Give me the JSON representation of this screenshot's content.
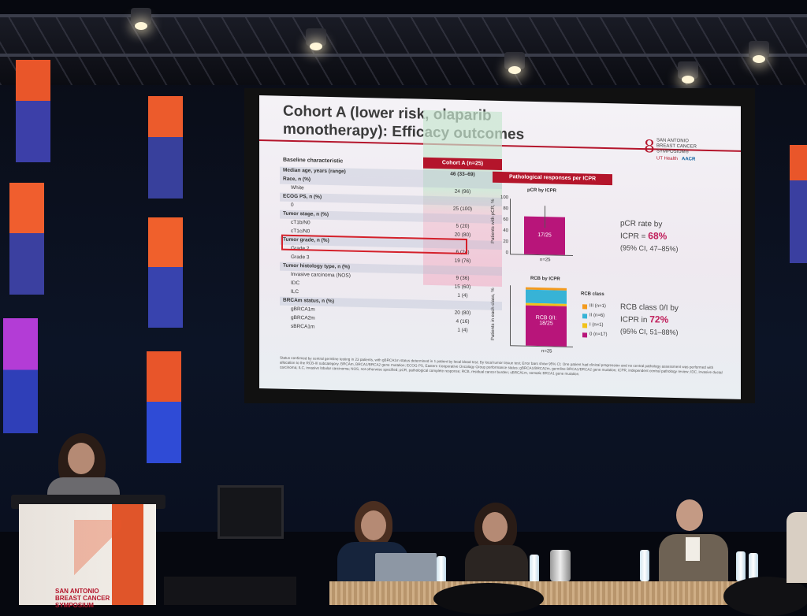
{
  "slide": {
    "title_line1": "Cohort A (lower risk, olaparib",
    "title_line2": "monotherapy): Efficacy outcomes",
    "logo_text": "SAN ANTONIO BREAST CANCER SYMPOSIUM®",
    "logo_ut": "UT Health",
    "logo_aacr": "AACR",
    "table": {
      "col_left": "Baseline characteristic",
      "col_right": "Cohort A (n=25)",
      "rows": [
        {
          "label": "Median age, years (range)",
          "value": "46 (33–69)",
          "kind": "hdr"
        },
        {
          "label": "Race, n (%)",
          "value": "",
          "kind": "hdr"
        },
        {
          "label": "White",
          "value": "24 (96)",
          "kind": "sub"
        },
        {
          "label": "ECOG PS, n (%)",
          "value": "",
          "kind": "hdr"
        },
        {
          "label": "0",
          "value": "25 (100)",
          "kind": "sub"
        },
        {
          "label": "Tumor stage, n (%)",
          "value": "",
          "kind": "hdr"
        },
        {
          "label": "cT1b/N0",
          "value": "5 (20)",
          "kind": "sub"
        },
        {
          "label": "cT1c/N0",
          "value": "20 (80)",
          "kind": "sub"
        },
        {
          "label": "Tumor grade, n (%)",
          "value": "",
          "kind": "hdr"
        },
        {
          "label": "Grade 2",
          "value": "6 (24)",
          "kind": "sub"
        },
        {
          "label": "Grade 3",
          "value": "19 (76)",
          "kind": "sub"
        },
        {
          "label": "Tumor histology type, n (%)",
          "value": "",
          "kind": "hdr"
        },
        {
          "label": "Invasive carcinoma (NOS)",
          "value": "9 (36)",
          "kind": "sub"
        },
        {
          "label": "IDC",
          "value": "15 (60)",
          "kind": "sub"
        },
        {
          "label": "ILC",
          "value": "1 (4)",
          "kind": "sub"
        },
        {
          "label": "BRCAm status, n (%)",
          "value": "",
          "kind": "hdr"
        },
        {
          "label": "gBRCA1m",
          "value": "20 (80)",
          "kind": "sub"
        },
        {
          "label": "gBRCA2m",
          "value": "4 (16)",
          "kind": "sub"
        },
        {
          "label": "sBRCA1m",
          "value": "1 (4)",
          "kind": "sub"
        }
      ]
    },
    "responses": {
      "header": "Pathological responses per ICPR",
      "pcr_chart_title": "pCR by ICPR",
      "pcr_ylabel": "Patients with pCR, %",
      "pcr_bar_label": "17/25",
      "pcr_n": "n=25",
      "pcr_ticks": [
        "100",
        "80",
        "60",
        "40",
        "20",
        "0"
      ],
      "pcr_text_1": "pCR rate by",
      "pcr_text_2a": "ICPR = ",
      "pcr_text_2b": "68%",
      "pcr_text_3": "(95% CI, 47–85%)",
      "rcb_chart_title": "RCB by ICPR",
      "rcb_ylabel": "Patients in each class, %",
      "rcb_bar_label_1": "RCB 0/I:",
      "rcb_bar_label_2": "18/25",
      "rcb_n": "n=25",
      "rcb_legend_title": "RCB class",
      "rcb_legend": [
        {
          "label": "III (n=1)",
          "color": "#f39a1e"
        },
        {
          "label": "II (n=6)",
          "color": "#37b3d6"
        },
        {
          "label": "I (n=1)",
          "color": "#f2c21b"
        },
        {
          "label": "0 (n=17)",
          "color": "#b8157a"
        }
      ],
      "rcb_text_1": "RCB class 0/I by",
      "rcb_text_2a": "ICPR in ",
      "rcb_text_2b": "72%",
      "rcb_text_3": "(95% CI, 51–88%)"
    },
    "footnote": "Status confirmed by central germline testing in 23 patients, with gBRCA1m status determined in 1 patient by local blood test; By local tumor tissue test; Error bars show 95% CI; One patient had clinical progression and no central pathology assessment was performed with allocation to the RCB-III subcategory. BRCAm, BRCA1/BRCA2 gene mutation; ECOG PS, Eastern Cooperative Oncology Group performance status; gBRCA1/BRCA2m, germline BRCA1/BRCA2 gene mutation; ICPR, independent central pathology review; IDC, invasive ductal carcinoma; ILC, invasive lobular carcinoma; NOS, not otherwise specified; pCR, pathological complete response; RCB, residual cancer burden; sBRCA1m, somatic BRCA1 gene mutation."
  },
  "podium": {
    "line1": "SAN ANTONIO",
    "line2": "BREAST CANCER",
    "line3": "SYMPOSIUM"
  }
}
